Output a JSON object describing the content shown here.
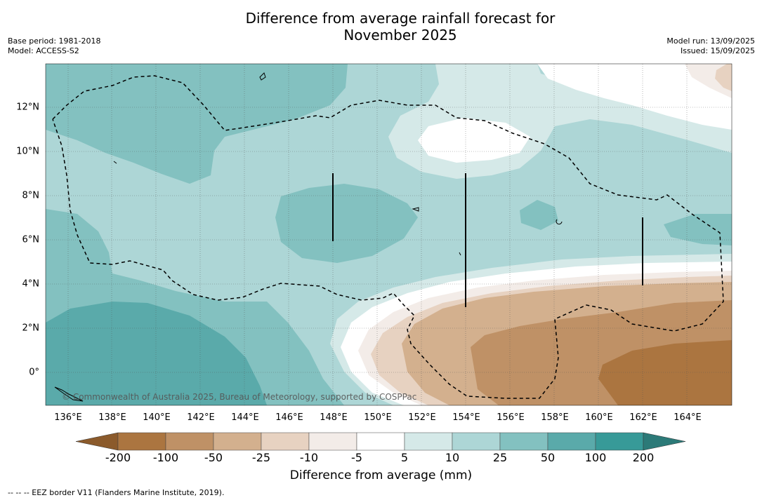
{
  "header": {
    "title_line1": "Difference from average rainfall forecast for",
    "title_line2": "November 2025",
    "base_period": "Base period: 1981-2018",
    "model": "Model: ACCESS-S2",
    "model_run": "Model run: 13/09/2025",
    "issued": "Issued: 15/09/2025"
  },
  "map": {
    "x_ticks": [
      "136°E",
      "138°E",
      "140°E",
      "142°E",
      "144°E",
      "146°E",
      "148°E",
      "150°E",
      "152°E",
      "154°E",
      "156°E",
      "158°E",
      "160°E",
      "162°E",
      "164°E"
    ],
    "y_ticks": [
      "12°N",
      "10°N",
      "8°N",
      "6°N",
      "4°N",
      "2°N",
      "0°"
    ],
    "copyright": "© Commonwealth of Australia 2025, Bureau of Meteorology, supported by COSPPac"
  },
  "colorbar": {
    "labels": [
      "-200",
      "-100",
      "-50",
      "-25",
      "-10",
      "-5",
      "5",
      "10",
      "25",
      "50",
      "100",
      "200"
    ],
    "colors": [
      "#8b5a2b",
      "#ab7540",
      "#bf9166",
      "#d3b08e",
      "#e7d2c1",
      "#f3ece8",
      "#ffffff",
      "#d5e9e8",
      "#add6d6",
      "#83c1c0",
      "#5aaaaa",
      "#379a98",
      "#2c7a78"
    ],
    "title": "Difference from average (mm)"
  },
  "footnote": "--  --  -- EEZ border V11 (Flanders Marine Institute, 2019)."
}
